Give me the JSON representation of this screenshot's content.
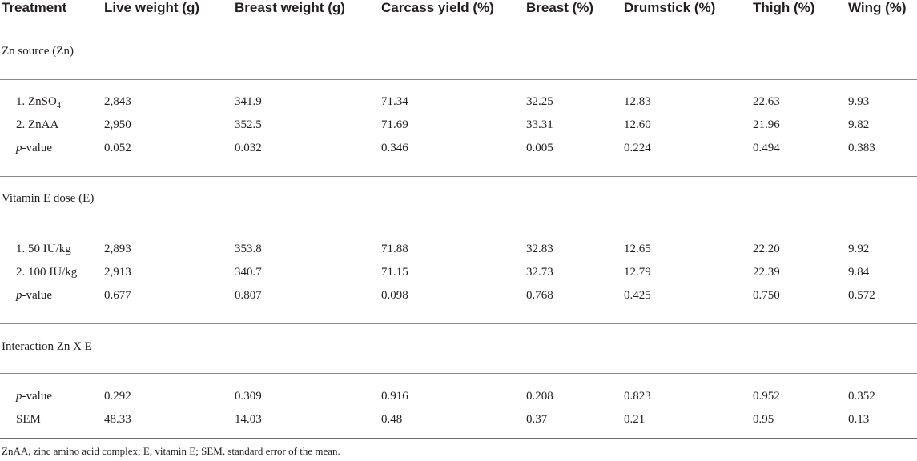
{
  "table": {
    "headers": [
      "Treatment",
      "Live weight (g)",
      "Breast weight (g)",
      "Carcass yield (%)",
      "Breast (%)",
      "Drumstick (%)",
      "Thigh (%)",
      "Wing (%)"
    ],
    "sections": [
      {
        "title": "Zn source (Zn)",
        "rows": [
          {
            "label_main": "1. ZnSO",
            "label_sub": "4",
            "values": [
              "2,843",
              "341.9",
              "71.34",
              "32.25",
              "12.83",
              "22.63",
              "9.93"
            ]
          },
          {
            "label_main": "2. ZnAA",
            "values": [
              "2,950",
              "352.5",
              "71.69",
              "33.31",
              "12.60",
              "21.96",
              "9.82"
            ]
          },
          {
            "label_italic": "p",
            "label_rest": "-value",
            "values": [
              "0.052",
              "0.032",
              "0.346",
              "0.005",
              "0.224",
              "0.494",
              "0.383"
            ]
          }
        ]
      },
      {
        "title": "Vitamin E dose (E)",
        "rows": [
          {
            "label_main": "1. 50 IU/kg",
            "values": [
              "2,893",
              "353.8",
              "71.88",
              "32.83",
              "12.65",
              "22.20",
              "9.92"
            ]
          },
          {
            "label_main": "2. 100 IU/kg",
            "values": [
              "2,913",
              "340.7",
              "71.15",
              "32.73",
              "12.79",
              "22.39",
              "9.84"
            ]
          },
          {
            "label_italic": "p",
            "label_rest": "-value",
            "values": [
              "0.677",
              "0.807",
              "0.098",
              "0.768",
              "0.425",
              "0.750",
              "0.572"
            ]
          }
        ]
      },
      {
        "title": "Interaction Zn X E",
        "rows": [
          {
            "label_italic": "p",
            "label_rest": "-value",
            "values": [
              "0.292",
              "0.309",
              "0.916",
              "0.208",
              "0.823",
              "0.952",
              "0.352"
            ]
          },
          {
            "label_main": "SEM",
            "values": [
              "48.33",
              "14.03",
              "0.48",
              "0.37",
              "0.21",
              "0.95",
              "0.13"
            ]
          }
        ]
      }
    ]
  },
  "footnote": "ZnAA, zinc amino acid complex; E, vitamin E; SEM, standard error of the mean."
}
